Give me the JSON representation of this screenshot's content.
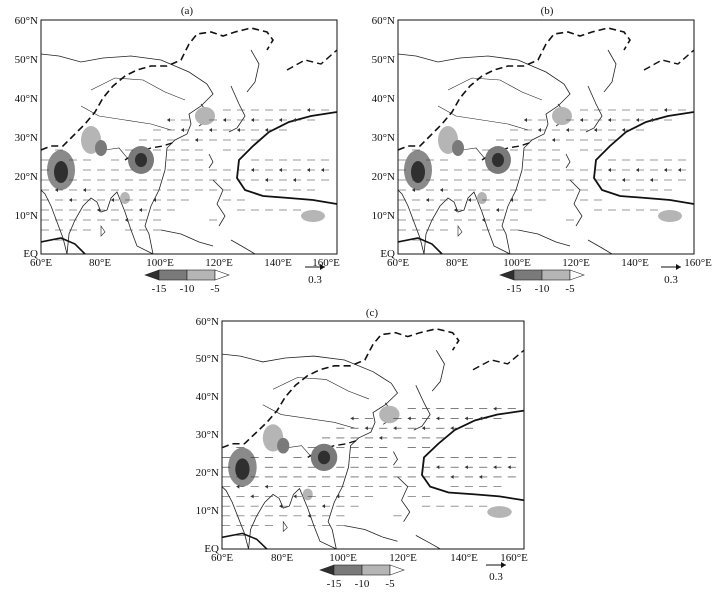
{
  "figure": {
    "panels": [
      {
        "label": "(a)",
        "lat_labels": [
          "60°N",
          "50°N",
          "40°N",
          "30°N",
          "20°N",
          "10°N",
          "EQ"
        ],
        "lon_labels": [
          "60°E",
          "80°E",
          "100°E",
          "120°E",
          "140°E",
          "160°E"
        ],
        "colorbar": {
          "ticks": [
            "-15",
            "-10",
            "-5"
          ]
        },
        "reference_vector": "0.3"
      },
      {
        "label": "(b)",
        "lat_labels": [
          "60°N",
          "50°N",
          "40°N",
          "30°N",
          "20°N",
          "10°N",
          "EQ"
        ],
        "lon_labels": [
          "60°E",
          "80°E",
          "100°E",
          "120°E",
          "140°E",
          "160°E"
        ],
        "colorbar": {
          "ticks": [
            "-15",
            "-10",
            "-5"
          ]
        },
        "reference_vector": "0.3"
      },
      {
        "label": "(c)",
        "lat_labels": [
          "60°N",
          "50°N",
          "40°N",
          "30°N",
          "20°N",
          "10°N",
          "EQ"
        ],
        "lon_labels": [
          "60°E",
          "80°E",
          "100°E",
          "120°E",
          "140°E",
          "160°E"
        ],
        "colorbar": {
          "ticks": [
            "-15",
            "-10",
            "-5"
          ]
        },
        "reference_vector": "0.3"
      }
    ],
    "map_extent": {
      "lon": [
        60,
        160
      ],
      "lat": [
        0,
        60
      ]
    },
    "colors": {
      "shade_dark": "#2f2f2f",
      "shade_mid": "#7a7a7a",
      "shade_light": "#b5b5b5",
      "line": "#111111"
    }
  }
}
